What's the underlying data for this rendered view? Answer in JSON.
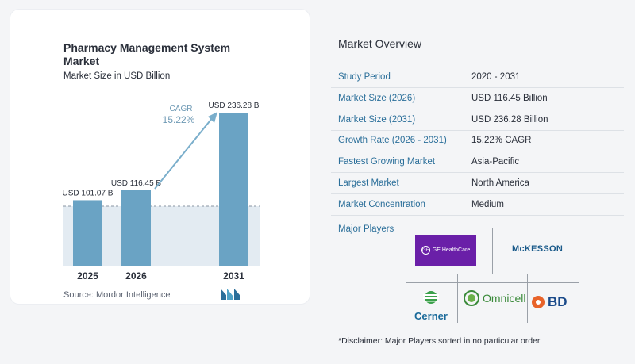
{
  "chart_card": {
    "title": "Pharmacy Management System Market",
    "subtitle": "Market Size in USD Billion",
    "cagr_label": "CAGR",
    "cagr_value": "15.22%",
    "source": "Source:  Mordor Intelligence"
  },
  "chart_data": {
    "type": "bar",
    "title": "Pharmacy Management System Market",
    "subtitle": "Market Size in USD Billion",
    "categories": [
      "2025",
      "2026",
      "2031"
    ],
    "values": [
      101.07,
      116.45,
      236.28
    ],
    "data_labels": [
      "USD 101.07 B",
      "USD 116.45 B",
      "USD 236.28 B"
    ],
    "xlabel": "",
    "ylabel": "",
    "grid": false,
    "annotation": "CAGR 15.22%"
  },
  "colors": {
    "bar": "#6aa3c4",
    "bar_top": "#5b90b4",
    "shade": "#e3ebf2",
    "accent": "#2b6f9a",
    "arrow": "#7aaecb"
  },
  "overview": {
    "title": "Market Overview",
    "rows": [
      {
        "label": "Study Period",
        "value": "2020 - 2031"
      },
      {
        "label": "Market Size (2026)",
        "value": "USD 116.45 Billion"
      },
      {
        "label": "Market Size (2031)",
        "value": "USD 236.28 Billion"
      },
      {
        "label": "Growth Rate (2026 - 2031)",
        "value": "15.22% CAGR"
      },
      {
        "label": "Fastest Growing Market",
        "value": "Asia-Pacific"
      },
      {
        "label": "Largest Market",
        "value": "North America"
      },
      {
        "label": "Market Concentration",
        "value": "Medium"
      }
    ],
    "major_players_title": "Major Players",
    "players": {
      "ge": "GE HealthCare",
      "ge_mark": "GE",
      "mckesson": "McKESSON",
      "cerner": "Cerner",
      "omnicell": "Omnicell",
      "bd": "BD"
    },
    "disclaimer": "*Disclaimer: Major Players sorted in no particular order"
  }
}
